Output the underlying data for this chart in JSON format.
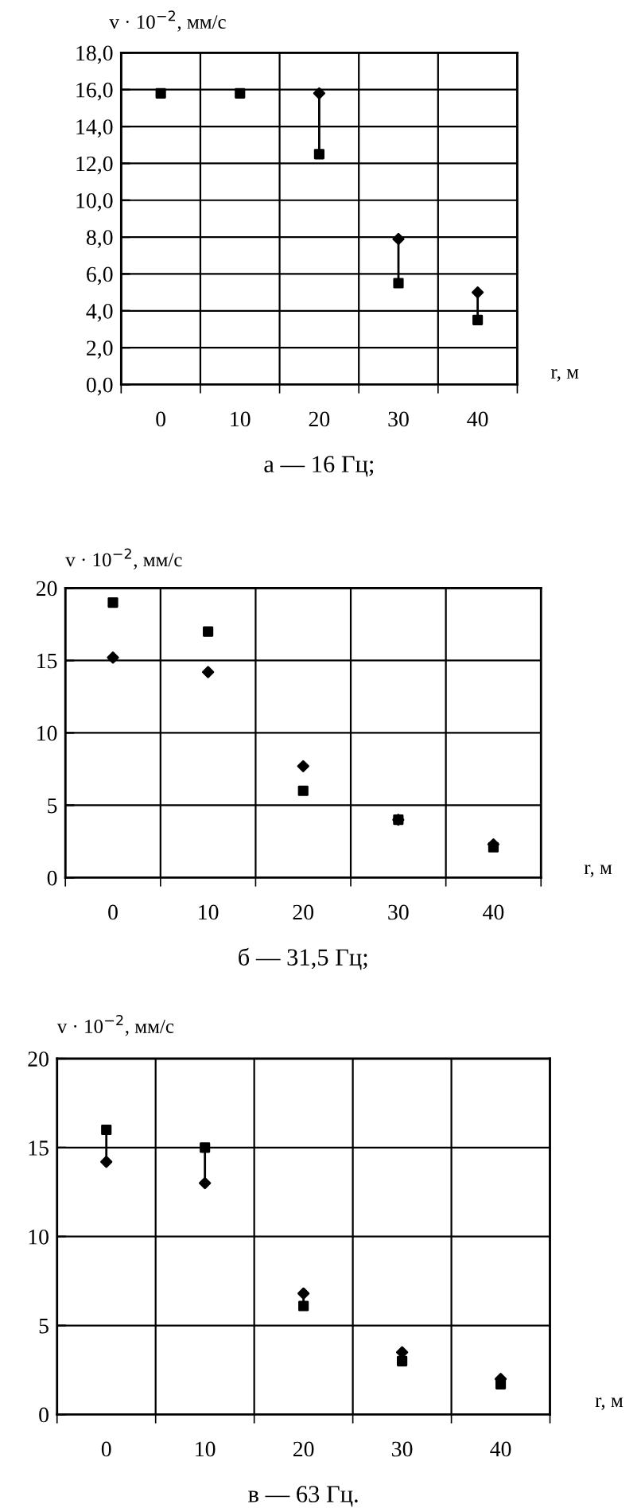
{
  "chart_data": [
    {
      "type": "scatter",
      "title": "а — 16 Гц;",
      "xlabel": "r, м",
      "ylabel": "v · 10$^{−2}$, мм/с",
      "categories": [
        "0",
        "10",
        "20",
        "30",
        "40"
      ],
      "ylim": [
        0,
        18
      ],
      "yticks": [
        {
          "value": 0,
          "label": "0,0"
        },
        {
          "value": 2,
          "label": "2,0"
        },
        {
          "value": 4,
          "label": "4,0"
        },
        {
          "value": 6,
          "label": "6,0"
        },
        {
          "value": 8,
          "label": "8,0"
        },
        {
          "value": 10,
          "label": "10,0"
        },
        {
          "value": 12,
          "label": "12,0"
        },
        {
          "value": 14,
          "label": "14,0"
        },
        {
          "value": 16,
          "label": "16,0"
        },
        {
          "value": 18,
          "label": "18,0"
        }
      ],
      "grid": true,
      "series": [
        {
          "type": "line",
          "color": "#000000",
          "marker": "none",
          "x": [
            "20",
            "20"
          ],
          "values": [
            12.5,
            15.8
          ]
        },
        {
          "type": "line",
          "color": "#000000",
          "marker": "none",
          "x": [
            "30",
            "30"
          ],
          "values": [
            5.5,
            7.9
          ]
        },
        {
          "type": "line",
          "color": "#000000",
          "marker": "none",
          "x": [
            "40",
            "40"
          ],
          "values": [
            3.5,
            5.0
          ]
        },
        {
          "color": "#000000",
          "marker": "square",
          "values": [
            15.8,
            15.8,
            12.5,
            5.5,
            3.5
          ]
        },
        {
          "color": "#000000",
          "marker": "diamond",
          "values": [
            null,
            null,
            15.8,
            7.9,
            5.0
          ]
        }
      ]
    },
    {
      "type": "scatter",
      "title": "б — 31,5 Гц;",
      "xlabel": "r, м",
      "ylabel": "v · 10$^{−2}$, мм/с",
      "categories": [
        "0",
        "10",
        "20",
        "30",
        "40"
      ],
      "ylim": [
        0,
        20
      ],
      "yticks": [
        0,
        5,
        10,
        15,
        20
      ],
      "grid": true,
      "series": [
        {
          "color": "#000000",
          "marker": "square",
          "values": [
            19,
            17,
            6,
            4,
            2.1
          ]
        },
        {
          "color": "#000000",
          "marker": "diamond",
          "values": [
            15.2,
            14.2,
            7.7,
            4.0,
            2.3
          ]
        }
      ]
    },
    {
      "type": "scatter",
      "title": "в — 63 Гц.",
      "xlabel": "r, м",
      "ylabel": "v · 10$^{−2}$, мм/с",
      "categories": [
        "0",
        "10",
        "20",
        "30",
        "40"
      ],
      "ylim": [
        0,
        20
      ],
      "yticks": [
        0,
        5,
        10,
        15,
        20
      ],
      "grid": true,
      "series": [
        {
          "type": "line",
          "color": "#000000",
          "marker": "none",
          "x": [
            "0",
            "0"
          ],
          "values": [
            14.2,
            16
          ]
        },
        {
          "type": "line",
          "color": "#000000",
          "marker": "none",
          "x": [
            "10",
            "10"
          ],
          "values": [
            13,
            15
          ]
        },
        {
          "type": "line",
          "color": "#000000",
          "marker": "none",
          "x": [
            "20",
            "20"
          ],
          "values": [
            6.1,
            6.8
          ]
        },
        {
          "color": "#000000",
          "marker": "square",
          "values": [
            16,
            15,
            6.1,
            3.0,
            1.7
          ]
        },
        {
          "color": "#000000",
          "marker": "diamond",
          "values": [
            14.2,
            13,
            6.8,
            3.5,
            2.0
          ]
        }
      ]
    }
  ]
}
